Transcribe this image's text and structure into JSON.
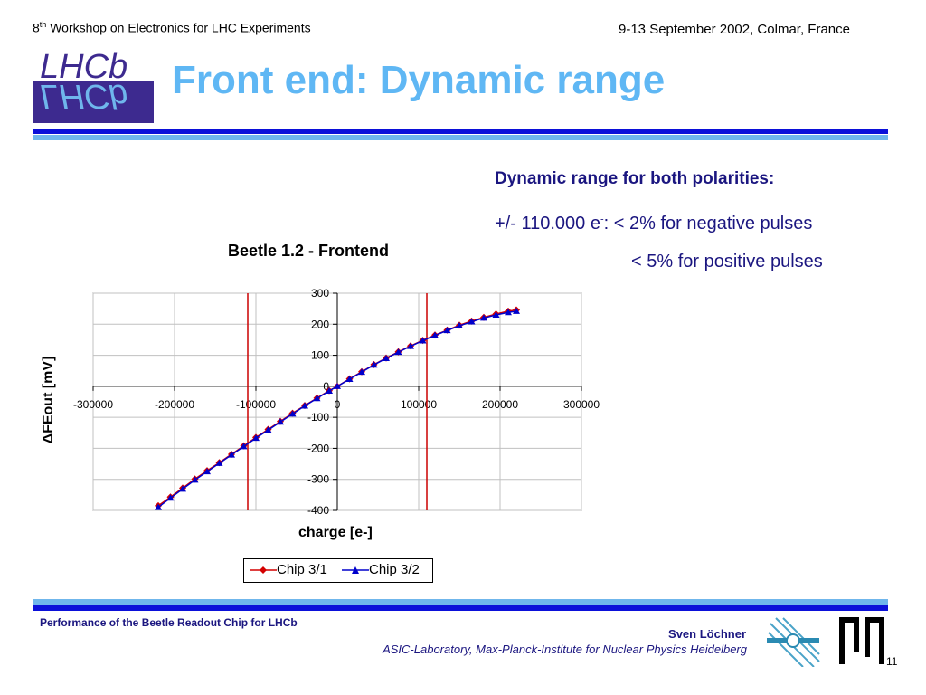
{
  "header": {
    "left_prefix": "8",
    "left_sup": "th",
    "left_rest": " Workshop on Electronics for LHC Experiments",
    "right": "9-13 September 2002, Colmar, France"
  },
  "logo": {
    "text": "LHCb",
    "colors": {
      "background": "#3d2a8f",
      "text": "#6fb6ec"
    }
  },
  "slide_title": "Front end: Dynamic range",
  "info": {
    "heading": "Dynamic range for both polarities:",
    "line1_prefix": "+/- 110.000 e",
    "line1_sup": "-",
    "line1_rest": ": < 2% for negative pulses",
    "line2": "< 5% for positive pulses"
  },
  "footer": {
    "left": "Performance of the Beetle Readout Chip for LHCb",
    "author": "Sven Löchner",
    "institute": "ASIC-Laboratory, Max-Planck-Institute for Nuclear Physics Heidelberg",
    "page": "11"
  },
  "colors": {
    "title": "#5fb7f4",
    "text_navy": "#1b1680",
    "bar_dark": "#0b10d9",
    "bar_light": "#6fb6ec",
    "series1": "#d40000",
    "series2": "#0000cc",
    "marker_lines": "#cc0000"
  },
  "chart_data": {
    "type": "line",
    "title": "Beetle 1.2 - Frontend",
    "xlabel": "charge [e-]",
    "ylabel": "ΔFEout [mV]",
    "xlim": [
      -300000,
      300000
    ],
    "ylim": [
      -400,
      300
    ],
    "xticks": [
      "-300000",
      "-200000",
      "-100000",
      "0",
      "100000",
      "200000",
      "300000"
    ],
    "yticks": [
      "300",
      "200",
      "100",
      "0",
      "-100",
      "-200",
      "-300",
      "-400"
    ],
    "grid": true,
    "legend_position": "bottom",
    "vertical_lines": [
      -110000,
      110000
    ],
    "x": [
      -220000,
      -205000,
      -190000,
      -175000,
      -160000,
      -145000,
      -130000,
      -115000,
      -100000,
      -85000,
      -70000,
      -55000,
      -40000,
      -25000,
      -10000,
      0,
      15000,
      30000,
      45000,
      60000,
      75000,
      90000,
      105000,
      120000,
      135000,
      150000,
      165000,
      180000,
      195000,
      210000,
      220000
    ],
    "series": [
      {
        "name": "Chip 3/1",
        "marker": "diamond",
        "values": [
          -385,
          -357,
          -328,
          -299,
          -272,
          -246,
          -219,
          -192,
          -165,
          -139,
          -113,
          -87,
          -62,
          -38,
          -14,
          0,
          24,
          47,
          70,
          91,
          111,
          130,
          148,
          165,
          181,
          197,
          210,
          222,
          233,
          242,
          246
        ]
      },
      {
        "name": "Chip 3/2",
        "marker": "triangle",
        "values": [
          -390,
          -360,
          -331,
          -302,
          -275,
          -248,
          -221,
          -194,
          -167,
          -141,
          -115,
          -89,
          -63,
          -39,
          -15,
          0,
          23,
          46,
          69,
          90,
          110,
          129,
          147,
          164,
          180,
          195,
          208,
          220,
          230,
          238,
          242
        ]
      }
    ]
  }
}
